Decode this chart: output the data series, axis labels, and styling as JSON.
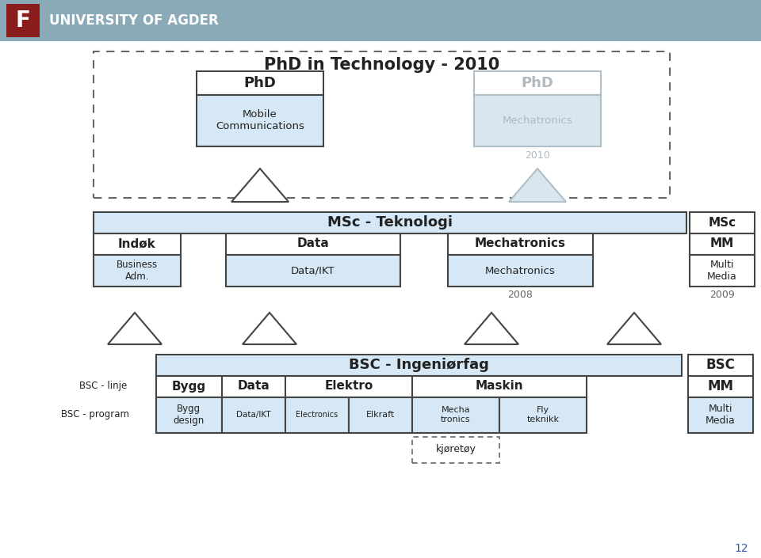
{
  "bg_color": "#ffffff",
  "header_bg": "#8baab8",
  "light_blue": "#d6e8f5",
  "light_blue2": "#cce0f0",
  "white": "#ffffff",
  "gray_text": "#b0b8c0",
  "gray_blue_border": "#b0bec8",
  "gray_blue_fill": "#d8e6f0",
  "dark_border": "#444444",
  "title_text": "PhD in Technology - 2010",
  "page_number": "12",
  "university_text": "UNIVERSITY OF AGDER"
}
